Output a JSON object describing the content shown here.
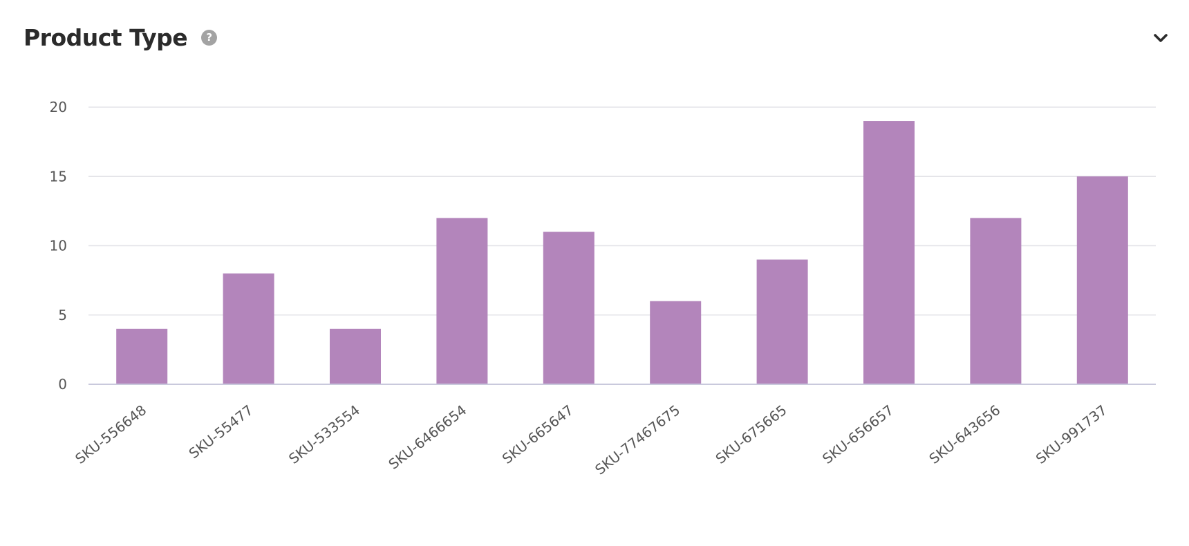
{
  "widget": {
    "title": "Product Type",
    "help_icon": "question-circle-icon",
    "collapse_icon": "chevron-down-icon"
  },
  "chart_data": {
    "type": "bar",
    "title": "Product Type",
    "xlabel": "",
    "ylabel": "",
    "ylim": [
      0,
      20
    ],
    "yticks": [
      0,
      5,
      10,
      15,
      20
    ],
    "grid": true,
    "legend": "none",
    "bar_color": "#b385bb",
    "categories": [
      "SKU-556648",
      "SKU-55477",
      "SKU-533554",
      "SKU-6466654",
      "SKU-665647",
      "SKU-77467675",
      "SKU-675665",
      "SKU-656657",
      "SKU-643656",
      "SKU-991737"
    ],
    "values": [
      4,
      8,
      4,
      12,
      11,
      6,
      9,
      19,
      12,
      15
    ]
  }
}
